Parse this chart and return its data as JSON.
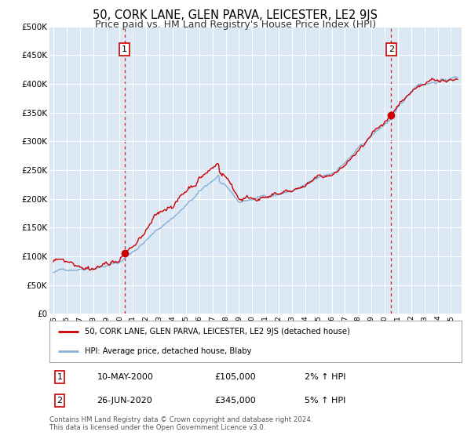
{
  "title": "50, CORK LANE, GLEN PARVA, LEICESTER, LE2 9JS",
  "subtitle": "Price paid vs. HM Land Registry's House Price Index (HPI)",
  "title_fontsize": 10.5,
  "subtitle_fontsize": 9,
  "background_color": "#dce9f5",
  "plot_bg_color": "#dce9f5",
  "outer_bg_color": "#ffffff",
  "hpi_color": "#85afd4",
  "price_color": "#cc0000",
  "marker_color": "#cc0000",
  "vline_color": "#cc2222",
  "ylim": [
    0,
    500000
  ],
  "yticks": [
    0,
    50000,
    100000,
    150000,
    200000,
    250000,
    300000,
    350000,
    400000,
    450000,
    500000
  ],
  "ytick_labels": [
    "£0",
    "£50K",
    "£100K",
    "£150K",
    "£200K",
    "£250K",
    "£300K",
    "£350K",
    "£400K",
    "£450K",
    "£500K"
  ],
  "sale1_year": 2000.36,
  "sale1_price": 105000,
  "sale1_label": "1",
  "sale1_date": "10-MAY-2000",
  "sale1_pct": "2%",
  "sale2_year": 2020.49,
  "sale2_price": 345000,
  "sale2_label": "2",
  "sale2_date": "26-JUN-2020",
  "sale2_pct": "5%",
  "legend_line1": "50, CORK LANE, GLEN PARVA, LEICESTER, LE2 9JS (detached house)",
  "legend_line2": "HPI: Average price, detached house, Blaby",
  "footnote": "Contains HM Land Registry data © Crown copyright and database right 2024.\nThis data is licensed under the Open Government Licence v3.0.",
  "xstart": 1994.7,
  "xend": 2025.8
}
